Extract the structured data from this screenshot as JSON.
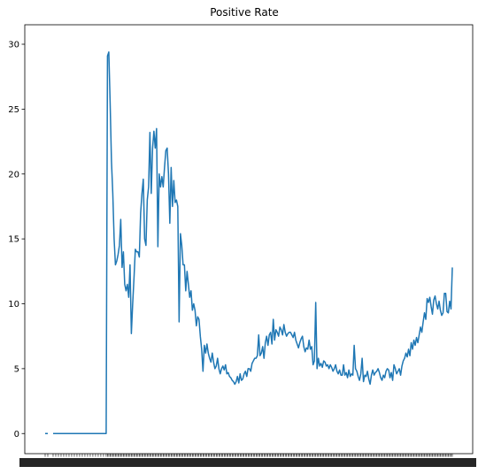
{
  "chart_data": {
    "type": "line",
    "title": "Positive Rate",
    "xlabel": "",
    "ylabel": "",
    "ylim": [
      -1.55,
      31.5
    ],
    "yticks": [
      0,
      5,
      10,
      15,
      20,
      25,
      30
    ],
    "grid": false,
    "x_tick_labels_legible": false,
    "colors": {
      "line": "#1f77b4"
    },
    "series": [
      {
        "name": "",
        "points": [
          [
            0,
            0
          ],
          [
            2,
            0
          ],
          [
            6,
            0
          ],
          [
            8,
            0
          ],
          [
            10,
            0
          ],
          [
            12,
            0
          ],
          [
            14,
            0
          ],
          [
            16,
            0
          ],
          [
            18,
            0
          ],
          [
            20,
            0
          ],
          [
            22,
            0
          ],
          [
            24,
            0
          ],
          [
            26,
            0
          ],
          [
            28,
            0
          ],
          [
            30,
            0
          ],
          [
            32,
            0
          ],
          [
            34,
            0
          ],
          [
            36,
            0
          ],
          [
            38,
            0
          ],
          [
            40,
            0
          ],
          [
            42,
            0
          ],
          [
            44,
            0
          ],
          [
            46,
            0
          ],
          [
            47,
            29.1
          ],
          [
            48,
            29.4
          ],
          [
            49,
            25.5
          ],
          [
            50,
            21
          ],
          [
            51,
            18.5
          ],
          [
            52,
            15
          ],
          [
            53,
            13
          ],
          [
            54,
            13.3
          ],
          [
            55,
            13.8
          ],
          [
            56,
            14.5
          ],
          [
            57,
            16.5
          ],
          [
            58,
            12.8
          ],
          [
            59,
            14
          ],
          [
            60,
            11.5
          ],
          [
            61,
            11
          ],
          [
            62,
            11.5
          ],
          [
            63,
            10.5
          ],
          [
            64,
            13
          ],
          [
            65,
            7.7
          ],
          [
            66,
            10
          ],
          [
            67,
            12
          ],
          [
            68,
            14.2
          ],
          [
            69,
            14
          ],
          [
            70,
            14
          ],
          [
            71,
            13.6
          ],
          [
            72,
            17
          ],
          [
            73,
            18.5
          ],
          [
            74,
            19.6
          ],
          [
            75,
            15
          ],
          [
            76,
            14.5
          ],
          [
            77,
            18
          ],
          [
            78,
            19
          ],
          [
            79,
            23.2
          ],
          [
            80,
            18.5
          ],
          [
            81,
            22
          ],
          [
            82,
            23.3
          ],
          [
            83,
            22
          ],
          [
            84,
            23.5
          ],
          [
            85,
            14.4
          ],
          [
            86,
            20
          ],
          [
            87,
            19
          ],
          [
            88,
            19.8
          ],
          [
            89,
            19
          ],
          [
            90,
            20.5
          ],
          [
            91,
            21.8
          ],
          [
            92,
            22
          ],
          [
            93,
            20
          ],
          [
            94,
            16.2
          ],
          [
            95,
            20.5
          ],
          [
            96,
            17.5
          ],
          [
            97,
            19.5
          ],
          [
            98,
            17.8
          ],
          [
            99,
            18
          ],
          [
            100,
            17.5
          ],
          [
            101,
            8.6
          ],
          [
            102,
            15.4
          ],
          [
            103,
            14.5
          ],
          [
            104,
            13
          ],
          [
            105,
            13
          ],
          [
            106,
            11
          ],
          [
            107,
            12.5
          ],
          [
            108,
            11.5
          ],
          [
            109,
            10.5
          ],
          [
            110,
            11
          ],
          [
            111,
            9.5
          ],
          [
            112,
            10
          ],
          [
            113,
            9.5
          ],
          [
            114,
            8.3
          ],
          [
            115,
            9
          ],
          [
            116,
            8.8
          ],
          [
            117,
            7.5
          ],
          [
            118,
            6.5
          ],
          [
            119,
            4.8
          ],
          [
            120,
            6.8
          ],
          [
            121,
            6.2
          ],
          [
            122,
            6.9
          ],
          [
            123,
            6.2
          ],
          [
            124,
            5.8
          ],
          [
            125,
            5.5
          ],
          [
            126,
            6.2
          ],
          [
            127,
            5.5
          ],
          [
            128,
            5
          ],
          [
            129,
            5.2
          ],
          [
            130,
            5.8
          ],
          [
            131,
            5
          ],
          [
            132,
            4.6
          ],
          [
            133,
            5
          ],
          [
            134,
            5.2
          ],
          [
            135,
            4.9
          ],
          [
            136,
            5.3
          ],
          [
            137,
            4.6
          ],
          [
            138,
            4.7
          ],
          [
            139,
            4.4
          ],
          [
            140,
            4.3
          ],
          [
            141,
            4.1
          ],
          [
            142,
            4
          ],
          [
            143,
            3.8
          ],
          [
            144,
            4
          ],
          [
            145,
            4.4
          ],
          [
            146,
            3.9
          ],
          [
            147,
            4.6
          ],
          [
            148,
            4.1
          ],
          [
            149,
            4.2
          ],
          [
            150,
            4.6
          ],
          [
            151,
            4.8
          ],
          [
            152,
            4.4
          ],
          [
            153,
            5
          ],
          [
            154,
            5
          ],
          [
            155,
            4.8
          ],
          [
            156,
            5.4
          ],
          [
            157,
            5.6
          ],
          [
            158,
            5.8
          ],
          [
            159,
            5.8
          ],
          [
            160,
            6
          ],
          [
            161,
            7.6
          ],
          [
            162,
            6
          ],
          [
            163,
            6.2
          ],
          [
            164,
            6.7
          ],
          [
            165,
            5.8
          ],
          [
            166,
            7
          ],
          [
            167,
            7.5
          ],
          [
            168,
            6.8
          ],
          [
            169,
            7.6
          ],
          [
            170,
            7.8
          ],
          [
            171,
            6.9
          ],
          [
            172,
            8.8
          ],
          [
            173,
            7.2
          ],
          [
            174,
            8
          ],
          [
            175,
            7.8
          ],
          [
            176,
            7.5
          ],
          [
            177,
            8.2
          ],
          [
            178,
            8
          ],
          [
            179,
            7.6
          ],
          [
            180,
            8.4
          ],
          [
            181,
            7.8
          ],
          [
            182,
            7.5
          ],
          [
            183,
            7.7
          ],
          [
            184,
            7.8
          ],
          [
            185,
            7.8
          ],
          [
            186,
            7.6
          ],
          [
            187,
            7.4
          ],
          [
            188,
            7.8
          ],
          [
            189,
            7.2
          ],
          [
            190,
            6.9
          ],
          [
            191,
            6.6
          ],
          [
            192,
            7
          ],
          [
            193,
            7.3
          ],
          [
            194,
            7.5
          ],
          [
            195,
            6.7
          ],
          [
            196,
            6.3
          ],
          [
            197,
            6.6
          ],
          [
            198,
            6.5
          ],
          [
            199,
            7.2
          ],
          [
            200,
            6.5
          ],
          [
            201,
            6.7
          ],
          [
            202,
            5.3
          ],
          [
            203,
            5.6
          ],
          [
            204,
            10.1
          ],
          [
            205,
            5
          ],
          [
            206,
            5.8
          ],
          [
            207,
            5.2
          ],
          [
            208,
            5.4
          ],
          [
            209,
            5.1
          ],
          [
            210,
            5.6
          ],
          [
            211,
            5.5
          ],
          [
            212,
            5.2
          ],
          [
            213,
            5.3
          ],
          [
            214,
            5
          ],
          [
            215,
            5.3
          ],
          [
            216,
            5.1
          ],
          [
            217,
            4.8
          ],
          [
            218,
            5
          ],
          [
            219,
            5.3
          ],
          [
            220,
            4.8
          ],
          [
            221,
            4.6
          ],
          [
            222,
            4.9
          ],
          [
            223,
            4.5
          ],
          [
            224,
            4.5
          ],
          [
            225,
            5.3
          ],
          [
            226,
            4.5
          ],
          [
            227,
            4.7
          ],
          [
            228,
            4.3
          ],
          [
            229,
            4.9
          ],
          [
            230,
            4.4
          ],
          [
            231,
            4.6
          ],
          [
            232,
            4.5
          ],
          [
            233,
            6.8
          ],
          [
            234,
            5
          ],
          [
            235,
            4.8
          ],
          [
            236,
            4.4
          ],
          [
            237,
            4.1
          ],
          [
            238,
            4.6
          ],
          [
            239,
            5.8
          ],
          [
            240,
            4
          ],
          [
            241,
            4.5
          ],
          [
            242,
            4.4
          ],
          [
            243,
            4.8
          ],
          [
            244,
            4.2
          ],
          [
            245,
            3.8
          ],
          [
            246,
            4.5
          ],
          [
            247,
            4.9
          ],
          [
            248,
            4.5
          ],
          [
            249,
            4.7
          ],
          [
            250,
            4.8
          ],
          [
            251,
            5
          ],
          [
            252,
            4.7
          ],
          [
            253,
            4.3
          ],
          [
            254,
            4.1
          ],
          [
            255,
            4.5
          ],
          [
            256,
            4.3
          ],
          [
            257,
            4.8
          ],
          [
            258,
            5
          ],
          [
            259,
            4.9
          ],
          [
            260,
            4.3
          ],
          [
            261,
            4.7
          ],
          [
            262,
            4.1
          ],
          [
            263,
            5.3
          ],
          [
            264,
            5
          ],
          [
            265,
            4.6
          ],
          [
            266,
            4.8
          ],
          [
            267,
            5
          ],
          [
            268,
            4.5
          ],
          [
            269,
            5.2
          ],
          [
            270,
            5.6
          ],
          [
            271,
            5.8
          ],
          [
            272,
            6.2
          ],
          [
            273,
            5.9
          ],
          [
            274,
            6.5
          ],
          [
            275,
            6
          ],
          [
            276,
            7
          ],
          [
            277,
            6.5
          ],
          [
            278,
            7.2
          ],
          [
            279,
            6.8
          ],
          [
            280,
            7.4
          ],
          [
            281,
            7
          ],
          [
            282,
            7.6
          ],
          [
            283,
            8.2
          ],
          [
            284,
            7.8
          ],
          [
            285,
            8.6
          ],
          [
            286,
            9.3
          ],
          [
            287,
            8.8
          ],
          [
            288,
            10.4
          ],
          [
            289,
            10.1
          ],
          [
            290,
            10.5
          ],
          [
            291,
            9.8
          ],
          [
            292,
            9.2
          ],
          [
            293,
            10.3
          ],
          [
            294,
            10.6
          ],
          [
            295,
            10
          ],
          [
            296,
            9.6
          ],
          [
            297,
            10.2
          ],
          [
            298,
            9.5
          ],
          [
            299,
            9.1
          ],
          [
            300,
            9.3
          ],
          [
            301,
            10.8
          ],
          [
            302,
            10.8
          ],
          [
            303,
            9.4
          ],
          [
            304,
            9.3
          ],
          [
            305,
            10.2
          ],
          [
            306,
            9.6
          ],
          [
            307,
            12.8
          ]
        ]
      }
    ]
  }
}
